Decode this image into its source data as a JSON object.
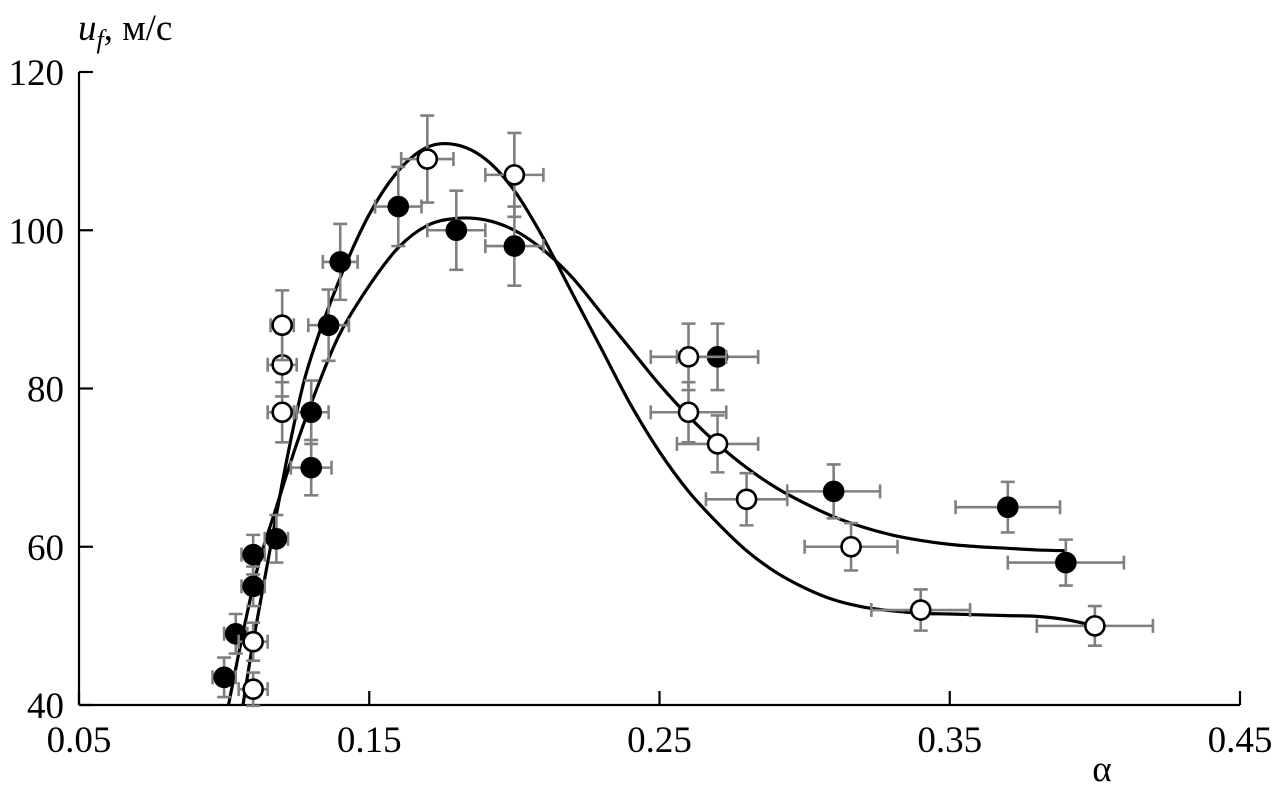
{
  "chart_data": {
    "type": "scatter",
    "ylabel": {
      "var": "u",
      "sub": "f",
      "unit": ", м/с"
    },
    "xlabel": "α",
    "xlim": [
      0.05,
      0.45
    ],
    "ylim": [
      40,
      120
    ],
    "x_ticks": [
      0.05,
      0.15,
      0.25,
      0.35,
      0.45
    ],
    "x_tick_labels": [
      "0.05",
      "0.15",
      "0.25",
      "0.35",
      "0.45"
    ],
    "y_ticks": [
      40,
      60,
      80,
      100,
      120
    ],
    "y_tick_labels": [
      "40",
      "60",
      "80",
      "100",
      "120"
    ],
    "grid": false,
    "series": [
      {
        "marker": "filled-circle",
        "color": "#000000",
        "points": [
          {
            "x": 0.1,
            "y": 43.5,
            "xerr": 0.004,
            "yerr": 2.5
          },
          {
            "x": 0.104,
            "y": 49,
            "xerr": 0.004,
            "yerr": 2.5
          },
          {
            "x": 0.11,
            "y": 55,
            "xerr": 0.004,
            "yerr": 2.5
          },
          {
            "x": 0.11,
            "y": 59,
            "xerr": 0.004,
            "yerr": 2.5
          },
          {
            "x": 0.118,
            "y": 61,
            "xerr": 0.004,
            "yerr": 3
          },
          {
            "x": 0.13,
            "y": 70,
            "xerr": 0.007,
            "yerr": 3.5
          },
          {
            "x": 0.13,
            "y": 77,
            "xerr": 0.006,
            "yerr": 4
          },
          {
            "x": 0.136,
            "y": 88,
            "xerr": 0.007,
            "yerr": 4.5
          },
          {
            "x": 0.14,
            "y": 96,
            "xerr": 0.006,
            "yerr": 4.8
          },
          {
            "x": 0.16,
            "y": 103,
            "xerr": 0.008,
            "yerr": 5
          },
          {
            "x": 0.18,
            "y": 100,
            "xerr": 0.01,
            "yerr": 5
          },
          {
            "x": 0.2,
            "y": 98,
            "xerr": 0.01,
            "yerr": 5
          },
          {
            "x": 0.27,
            "y": 84,
            "xerr": 0.014,
            "yerr": 4.2
          },
          {
            "x": 0.31,
            "y": 67,
            "xerr": 0.016,
            "yerr": 3.4
          },
          {
            "x": 0.37,
            "y": 65,
            "xerr": 0.018,
            "yerr": 3.2
          },
          {
            "x": 0.39,
            "y": 58,
            "xerr": 0.02,
            "yerr": 2.9
          }
        ],
        "fit": [
          [
            0.1015,
            40
          ],
          [
            0.107,
            50
          ],
          [
            0.112,
            58
          ],
          [
            0.118,
            65
          ],
          [
            0.125,
            73
          ],
          [
            0.133,
            81
          ],
          [
            0.14,
            87
          ],
          [
            0.15,
            93
          ],
          [
            0.16,
            97.8
          ],
          [
            0.17,
            100.6
          ],
          [
            0.18,
            101.5
          ],
          [
            0.19,
            101.3
          ],
          [
            0.2,
            100
          ],
          [
            0.21,
            97.5
          ],
          [
            0.22,
            94
          ],
          [
            0.23,
            89.5
          ],
          [
            0.24,
            85
          ],
          [
            0.25,
            80.5
          ],
          [
            0.26,
            76.5
          ],
          [
            0.27,
            73
          ],
          [
            0.28,
            70
          ],
          [
            0.29,
            67.5
          ],
          [
            0.3,
            65.5
          ],
          [
            0.31,
            63.8
          ],
          [
            0.32,
            62.5
          ],
          [
            0.33,
            61.5
          ],
          [
            0.34,
            60.8
          ],
          [
            0.35,
            60.3
          ],
          [
            0.36,
            60
          ],
          [
            0.37,
            59.8
          ],
          [
            0.38,
            59.6
          ],
          [
            0.39,
            59.5
          ]
        ]
      },
      {
        "marker": "open-circle",
        "color": "#000000",
        "points": [
          {
            "x": 0.11,
            "y": 42,
            "xerr": 0.005,
            "yerr": 2.1
          },
          {
            "x": 0.11,
            "y": 48,
            "xerr": 0.005,
            "yerr": 2.4
          },
          {
            "x": 0.12,
            "y": 77,
            "xerr": 0.005,
            "yerr": 3.8
          },
          {
            "x": 0.12,
            "y": 83,
            "xerr": 0.005,
            "yerr": 4
          },
          {
            "x": 0.12,
            "y": 88,
            "xerr": 0.004,
            "yerr": 4.4
          },
          {
            "x": 0.17,
            "y": 109,
            "xerr": 0.009,
            "yerr": 5.5
          },
          {
            "x": 0.2,
            "y": 107,
            "xerr": 0.01,
            "yerr": 5.3
          },
          {
            "x": 0.26,
            "y": 84,
            "xerr": 0.013,
            "yerr": 4.2
          },
          {
            "x": 0.26,
            "y": 77,
            "xerr": 0.013,
            "yerr": 3.8
          },
          {
            "x": 0.27,
            "y": 73,
            "xerr": 0.014,
            "yerr": 3.6
          },
          {
            "x": 0.28,
            "y": 66,
            "xerr": 0.014,
            "yerr": 3.3
          },
          {
            "x": 0.316,
            "y": 60,
            "xerr": 0.016,
            "yerr": 3
          },
          {
            "x": 0.34,
            "y": 52,
            "xerr": 0.017,
            "yerr": 2.6
          },
          {
            "x": 0.4,
            "y": 50,
            "xerr": 0.02,
            "yerr": 2.5
          }
        ],
        "fit": [
          [
            0.1065,
            40
          ],
          [
            0.11,
            48
          ],
          [
            0.115,
            58
          ],
          [
            0.12,
            68
          ],
          [
            0.125,
            77
          ],
          [
            0.13,
            84
          ],
          [
            0.14,
            94
          ],
          [
            0.15,
            102
          ],
          [
            0.16,
            107.5
          ],
          [
            0.17,
            110.5
          ],
          [
            0.18,
            110.8
          ],
          [
            0.19,
            109
          ],
          [
            0.2,
            105
          ],
          [
            0.21,
            99
          ],
          [
            0.22,
            92
          ],
          [
            0.23,
            85
          ],
          [
            0.24,
            78
          ],
          [
            0.25,
            72
          ],
          [
            0.26,
            67
          ],
          [
            0.27,
            63
          ],
          [
            0.28,
            59.5
          ],
          [
            0.29,
            56.8
          ],
          [
            0.3,
            54.8
          ],
          [
            0.31,
            53.3
          ],
          [
            0.32,
            52.4
          ],
          [
            0.33,
            51.9
          ],
          [
            0.34,
            51.6
          ],
          [
            0.35,
            51.5
          ],
          [
            0.36,
            51.4
          ],
          [
            0.37,
            51.3
          ],
          [
            0.38,
            51.2
          ],
          [
            0.39,
            50.8
          ],
          [
            0.4,
            50
          ]
        ]
      }
    ]
  }
}
